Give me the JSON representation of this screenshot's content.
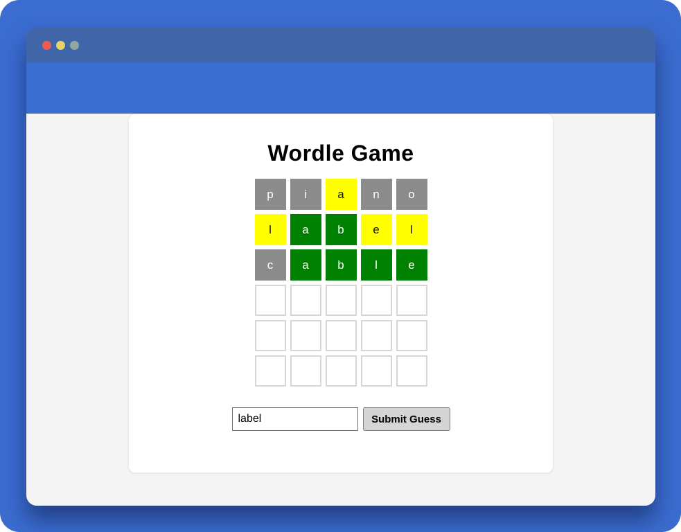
{
  "colors": {
    "accent": "#3b6cd0",
    "titlebar": "#4066a9",
    "content-bg": "#f4f4f5",
    "dot-close": "#ee5a52",
    "dot-minimize": "#e6d268",
    "dot-zoom": "#95a69c",
    "correct": "#008000",
    "present": "#ffff00",
    "absent": "#8c8c8c",
    "empty-border": "#d6d6d6"
  },
  "game": {
    "title": "Wordle Game",
    "board": {
      "rows": [
        {
          "tiles": [
            {
              "letter": "p",
              "state": "absent"
            },
            {
              "letter": "i",
              "state": "absent"
            },
            {
              "letter": "a",
              "state": "present"
            },
            {
              "letter": "n",
              "state": "absent"
            },
            {
              "letter": "o",
              "state": "absent"
            }
          ]
        },
        {
          "tiles": [
            {
              "letter": "l",
              "state": "present"
            },
            {
              "letter": "a",
              "state": "correct"
            },
            {
              "letter": "b",
              "state": "correct"
            },
            {
              "letter": "e",
              "state": "present"
            },
            {
              "letter": "l",
              "state": "present"
            }
          ]
        },
        {
          "tiles": [
            {
              "letter": "c",
              "state": "absent"
            },
            {
              "letter": "a",
              "state": "correct"
            },
            {
              "letter": "b",
              "state": "correct"
            },
            {
              "letter": "l",
              "state": "correct"
            },
            {
              "letter": "e",
              "state": "correct"
            }
          ]
        },
        {
          "tiles": [
            {
              "letter": "",
              "state": "empty"
            },
            {
              "letter": "",
              "state": "empty"
            },
            {
              "letter": "",
              "state": "empty"
            },
            {
              "letter": "",
              "state": "empty"
            },
            {
              "letter": "",
              "state": "empty"
            }
          ]
        },
        {
          "tiles": [
            {
              "letter": "",
              "state": "empty"
            },
            {
              "letter": "",
              "state": "empty"
            },
            {
              "letter": "",
              "state": "empty"
            },
            {
              "letter": "",
              "state": "empty"
            },
            {
              "letter": "",
              "state": "empty"
            }
          ]
        },
        {
          "tiles": [
            {
              "letter": "",
              "state": "empty"
            },
            {
              "letter": "",
              "state": "empty"
            },
            {
              "letter": "",
              "state": "empty"
            },
            {
              "letter": "",
              "state": "empty"
            },
            {
              "letter": "",
              "state": "empty"
            }
          ]
        }
      ]
    },
    "input": {
      "value": "label"
    },
    "submit_label": "Submit Guess"
  }
}
